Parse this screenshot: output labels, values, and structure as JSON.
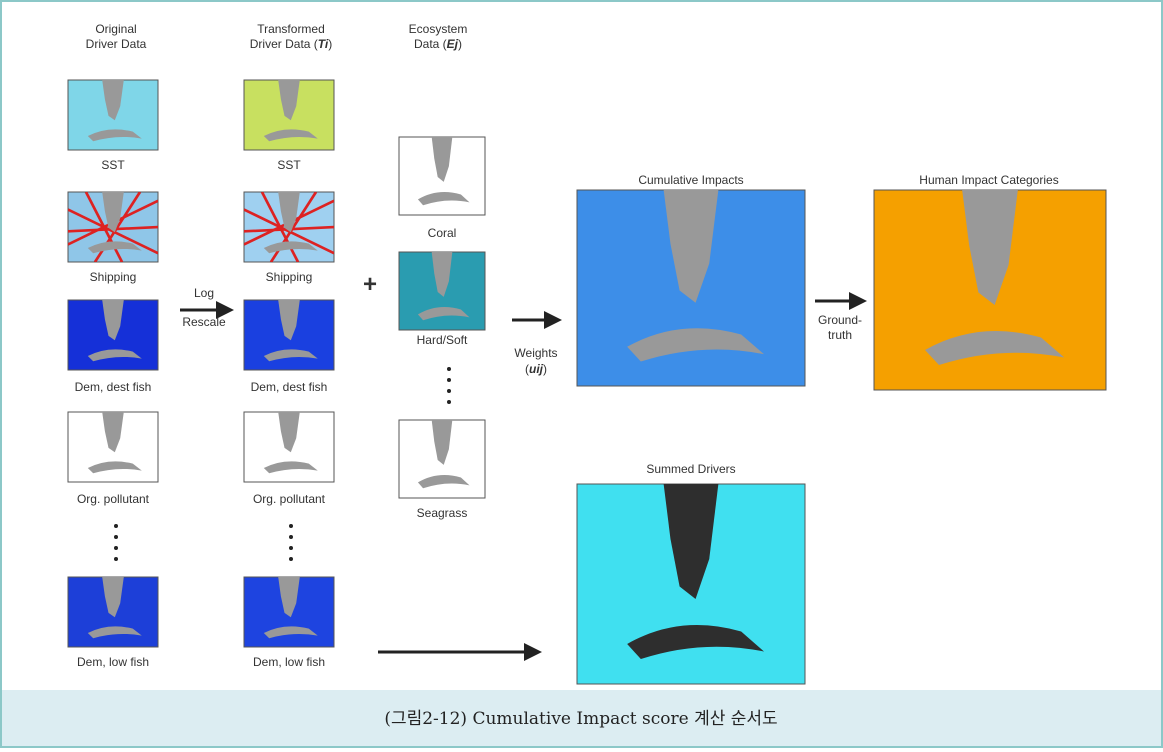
{
  "headers": [
    {
      "line1": "Original",
      "line2": "Driver Data"
    },
    {
      "line1": "Transformed",
      "line2": "Driver Data (",
      "symbol": "Ti",
      "close": ")"
    },
    {
      "line1": "Ecosystem",
      "line2": "Data (",
      "symbol": "Ej",
      "close": ")"
    }
  ],
  "original": [
    "SST",
    "Shipping",
    "Dem, dest fish",
    "Org. pollutant",
    "Dem, low fish"
  ],
  "transformed": [
    "SST",
    "Shipping",
    "Dem, dest fish",
    "Org. pollutant",
    "Dem, low fish"
  ],
  "ecosystem": [
    "Coral",
    "Hard/Soft",
    "Seagrass"
  ],
  "transform": {
    "top": "Log",
    "bottom": "Rescale"
  },
  "plus": "+",
  "weights": {
    "line1": "Weights",
    "open": "(",
    "symbol": "uij",
    "close": ")"
  },
  "groundtruth": {
    "line1": "Ground-",
    "line2": "truth"
  },
  "outputs": {
    "cumulative": "Cumulative Impacts",
    "human": "Human Impact Categories",
    "summed": "Summed Drivers"
  },
  "caption": "(그림2-12) Cumulative Impact score 계산 순서도"
}
